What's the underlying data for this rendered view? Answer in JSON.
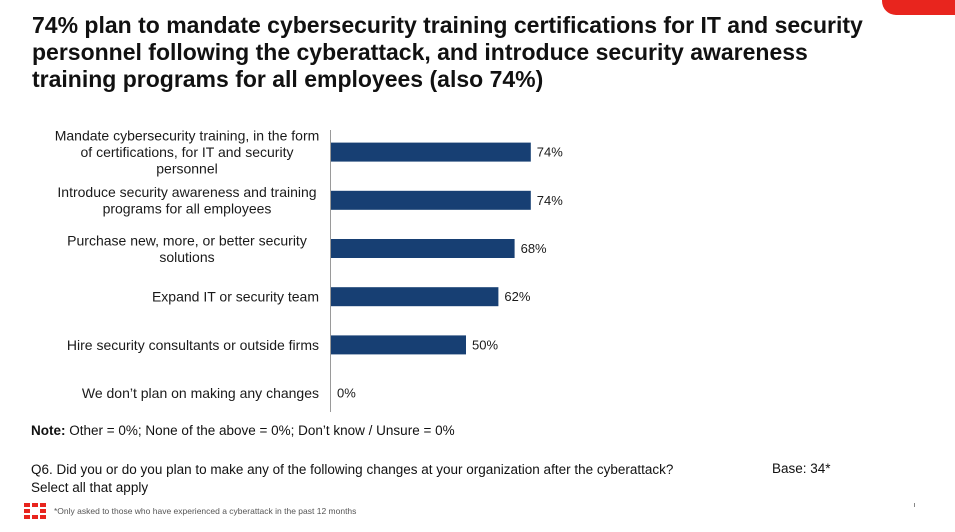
{
  "title": "74% plan to mandate cybersecurity training certifications for IT and security personnel following the cyberattack, and introduce security awareness training programs for all employees (also 74%)",
  "chart_data": {
    "type": "bar",
    "orientation": "horizontal",
    "categories": [
      [
        "Mandate cybersecurity training, in the form",
        "of certifications, for IT and security",
        "personnel"
      ],
      [
        "Introduce security awareness and training",
        "programs for all employees"
      ],
      [
        "Purchase new, more, or better security",
        "solutions"
      ],
      [
        "Expand IT or security team"
      ],
      [
        "Hire security consultants or outside firms"
      ],
      [
        "We don’t plan on making any changes"
      ]
    ],
    "values": [
      74,
      74,
      68,
      62,
      50,
      0
    ],
    "value_labels": [
      "74%",
      "74%",
      "68%",
      "62%",
      "50%",
      "0%"
    ],
    "xlim": [
      0,
      100
    ],
    "bar_color": "#173f73",
    "grid": false,
    "legend": "none"
  },
  "note": {
    "bold": "Note:",
    "text": " Other = 0%; None of the above = 0%; Don’t know / Unsure = 0%"
  },
  "question": {
    "line1": "Q6.  Did you or do you plan to make any of the following changes at your organization after the cyberattack?",
    "line2": "Select all that apply"
  },
  "base": "Base: 34*",
  "footnote": "*Only asked to those who have experienced a cyberattack in the past 12 months",
  "colors": {
    "accent": "#e8251e",
    "bar": "#173f73"
  }
}
